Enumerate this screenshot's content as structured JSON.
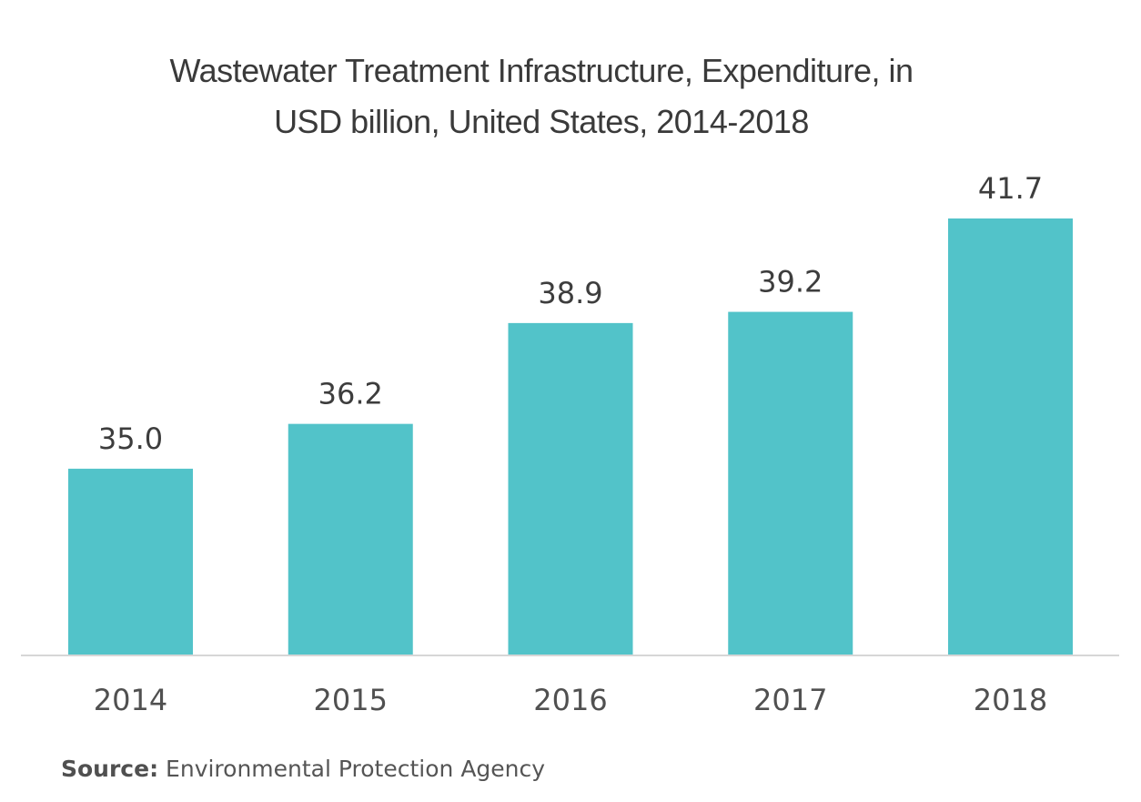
{
  "chart_data": {
    "type": "bar",
    "title": "Wastewater Treatment Infrastructure, Expenditure, in USD billion, United States, 2014-2018",
    "title_lines": [
      "Wastewater Treatment Infrastructure, Expenditure, in",
      "USD billion, United States, 2014-2018"
    ],
    "categories": [
      "2014",
      "2015",
      "2016",
      "2017",
      "2018"
    ],
    "values": [
      35.0,
      36.2,
      38.9,
      39.2,
      41.7
    ],
    "data_labels": [
      "35.0",
      "36.2",
      "38.9",
      "39.2",
      "41.7"
    ],
    "xlabel": "",
    "ylabel": "",
    "ylim": [
      30,
      43
    ],
    "grid": false,
    "legend": "none",
    "bar_color": "#52c3c9"
  },
  "source": {
    "label": "Source:",
    "text": "Environmental Protection Agency"
  }
}
